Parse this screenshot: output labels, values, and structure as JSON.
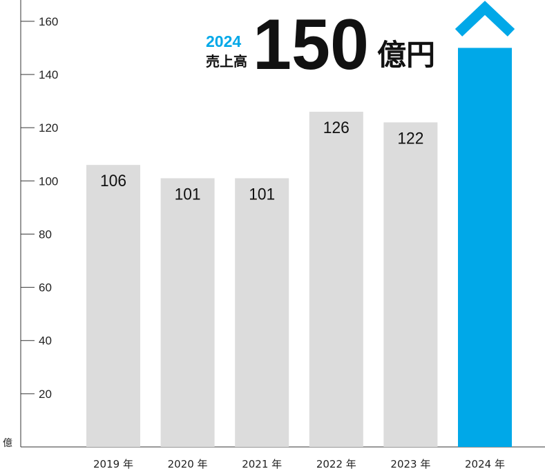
{
  "colors": {
    "bar": "#dcdcdc",
    "highlight": "#00a8e8",
    "axis": "#333333",
    "text": "#111111"
  },
  "headline": {
    "year": "2024",
    "label": "売上高",
    "value": "150",
    "unit": "億円"
  },
  "chart_data": {
    "type": "bar",
    "title": "",
    "xlabel": "",
    "ylabel": "",
    "y_unit_label": "億",
    "categories": [
      "2019 年",
      "2020 年",
      "2021 年",
      "2022 年",
      "2023 年",
      "2024 年"
    ],
    "values": [
      106,
      101,
      101,
      126,
      122,
      150
    ],
    "data_labels": [
      "106",
      "101",
      "101",
      "126",
      "122",
      ""
    ],
    "highlight_index": 5,
    "highlight_marker": "up-chevron",
    "ylim": [
      0,
      168
    ],
    "yticks": [
      20,
      40,
      60,
      80,
      100,
      120,
      140,
      160
    ],
    "grid": false,
    "legend": "none"
  }
}
